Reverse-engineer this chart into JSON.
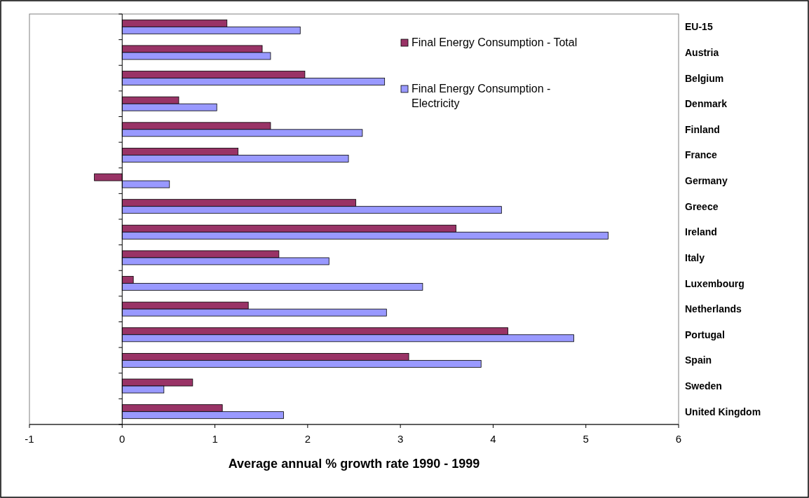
{
  "chart_data": {
    "type": "bar",
    "orientation": "horizontal",
    "xlabel": "Average annual % growth rate 1990 - 1999",
    "categories": [
      "EU-15",
      "Austria",
      "Belgium",
      "Denmark",
      "Finland",
      "France",
      "Germany",
      "Greece",
      "Ireland",
      "Italy",
      "Luxembourg",
      "Netherlands",
      "Portugal",
      "Spain",
      "Sweden",
      "United Kingdom"
    ],
    "series": [
      {
        "name": "Final Energy Consumption - Total",
        "color": "#993366",
        "values": [
          1.13,
          1.51,
          1.97,
          0.61,
          1.6,
          1.25,
          -0.3,
          2.52,
          3.6,
          1.69,
          0.12,
          1.36,
          4.16,
          3.09,
          0.76,
          1.08
        ]
      },
      {
        "name": "Final Energy Consumption - Electricity",
        "color": "#9999ff",
        "values": [
          1.92,
          1.6,
          2.83,
          1.02,
          2.59,
          2.44,
          0.51,
          4.09,
          5.24,
          2.23,
          3.24,
          2.85,
          4.87,
          3.87,
          0.45,
          1.74
        ]
      }
    ],
    "xlim": [
      -1,
      6
    ],
    "xticks": [
      -1,
      0,
      1,
      2,
      3,
      4,
      5,
      6
    ],
    "legend": "top right"
  }
}
